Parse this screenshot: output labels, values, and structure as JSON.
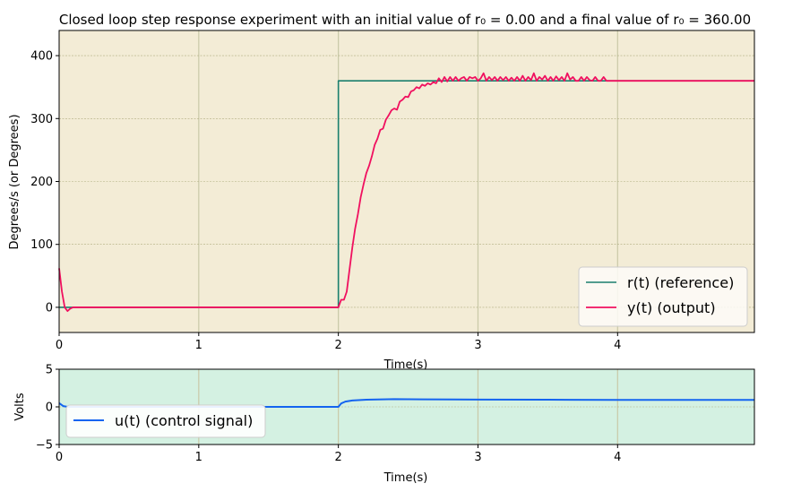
{
  "chart_data": [
    {
      "type": "line",
      "title": "Closed loop step response experiment with an initial value of  r₀ = 0.00 and a  final value of r₀ = 360.00",
      "xlabel": "Time(s)",
      "ylabel": "Degrees/s (or Degrees)",
      "xlim": [
        0,
        4.98
      ],
      "ylim": [
        -40,
        440
      ],
      "xticks": [
        "0",
        "1",
        "2",
        "3",
        "4"
      ],
      "yticks": [
        "0",
        "100",
        "200",
        "300",
        "400"
      ],
      "background": "#f3ecd6",
      "grid": true,
      "legend_position": "lower-right",
      "series": [
        {
          "name": "r(t) (reference)",
          "color": "#1a7f6e",
          "x": [
            0,
            2.0,
            2.0,
            4.98
          ],
          "y": [
            0,
            0,
            360,
            360
          ]
        },
        {
          "name": "y(t) (output)",
          "color": "#f0105f",
          "x": [
            0.0,
            0.02,
            0.04,
            0.06,
            0.08,
            0.1,
            0.5,
            1.0,
            1.5,
            2.0,
            2.02,
            2.04,
            2.06,
            2.08,
            2.1,
            2.12,
            2.14,
            2.16,
            2.18,
            2.2,
            2.22,
            2.24,
            2.26,
            2.28,
            2.3,
            2.32,
            2.34,
            2.36,
            2.38,
            2.4,
            2.42,
            2.44,
            2.46,
            2.48,
            2.5,
            2.52,
            2.54,
            2.56,
            2.58,
            2.6,
            2.62,
            2.64,
            2.66,
            2.68,
            2.7,
            2.72,
            2.74,
            2.76,
            2.78,
            2.8,
            2.82,
            2.84,
            2.86,
            2.88,
            2.9,
            2.92,
            2.94,
            2.96,
            2.98,
            3.0,
            3.02,
            3.04,
            3.06,
            3.08,
            3.1,
            3.12,
            3.14,
            3.16,
            3.18,
            3.2,
            3.22,
            3.24,
            3.26,
            3.28,
            3.3,
            3.32,
            3.34,
            3.36,
            3.38,
            3.4,
            3.42,
            3.44,
            3.46,
            3.48,
            3.5,
            3.52,
            3.54,
            3.56,
            3.58,
            3.6,
            3.62,
            3.64,
            3.66,
            3.68,
            3.7,
            3.72,
            3.74,
            3.76,
            3.78,
            3.8,
            3.82,
            3.84,
            3.86,
            3.88,
            3.9,
            3.92,
            3.94,
            3.96,
            3.98,
            4.0,
            4.5,
            4.98
          ],
          "y": [
            62,
            25,
            0,
            -6,
            -2,
            0,
            0,
            0,
            0,
            0,
            12,
            12,
            25,
            60,
            95,
            125,
            148,
            175,
            195,
            213,
            225,
            240,
            258,
            268,
            282,
            284,
            298,
            305,
            313,
            316,
            314,
            327,
            330,
            335,
            334,
            343,
            345,
            350,
            348,
            354,
            352,
            356,
            354,
            358,
            356,
            364,
            358,
            366,
            359,
            366,
            360,
            366,
            360,
            364,
            366,
            360,
            366,
            364,
            366,
            360,
            364,
            372,
            360,
            366,
            361,
            366,
            360,
            366,
            361,
            366,
            360,
            365,
            360,
            366,
            360,
            368,
            360,
            366,
            361,
            372,
            360,
            366,
            362,
            368,
            360,
            366,
            360,
            367,
            361,
            366,
            360,
            372,
            362,
            366,
            360,
            360,
            366,
            360,
            366,
            361,
            360,
            366,
            360,
            360,
            366,
            360,
            360,
            360,
            360,
            360,
            360,
            360
          ]
        }
      ]
    },
    {
      "type": "line",
      "xlabel": "Time(s)",
      "ylabel": "Volts",
      "xlim": [
        0,
        4.98
      ],
      "ylim": [
        -5,
        5
      ],
      "xticks": [
        "0",
        "1",
        "2",
        "3",
        "4"
      ],
      "yticks": [
        "−5",
        "0",
        "5"
      ],
      "background": "#d4f1e2",
      "grid": true,
      "legend_position": "lower-left",
      "series": [
        {
          "name": "u(t) (control signal)",
          "color": "#1464f0",
          "x": [
            0,
            0.03,
            0.06,
            0.5,
            1.0,
            1.5,
            2.0,
            2.02,
            2.05,
            2.1,
            2.2,
            2.4,
            2.6,
            3.0,
            3.5,
            4.0,
            4.5,
            4.98
          ],
          "y": [
            0.5,
            0.1,
            0.0,
            0.0,
            0.0,
            0.0,
            0.0,
            0.45,
            0.7,
            0.85,
            0.95,
            1.02,
            1.0,
            0.97,
            0.95,
            0.93,
            0.93,
            0.93
          ]
        }
      ]
    }
  ]
}
